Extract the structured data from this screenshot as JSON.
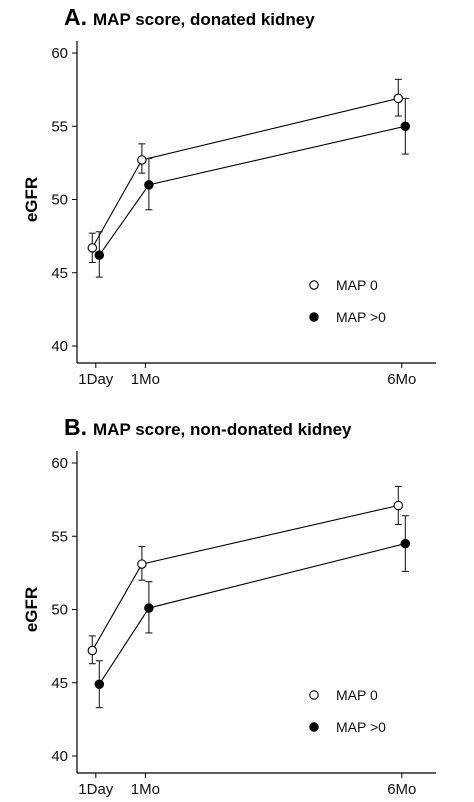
{
  "chart_data": [
    {
      "type": "line",
      "panel_letter": "A.",
      "title": "MAP score, donated kidney",
      "ylabel": "eGFR",
      "xlabel": "",
      "ylim": [
        40,
        60
      ],
      "yticks": [
        40,
        45,
        50,
        55,
        60
      ],
      "categories": [
        "1Day",
        "1Mo",
        "6Mo"
      ],
      "x": [
        1,
        30,
        180
      ],
      "xlim": [
        -10,
        200
      ],
      "grid": false,
      "legend_position": "bottom-right",
      "series": [
        {
          "name": "MAP 0",
          "marker": "open-circle",
          "values": [
            46.7,
            52.7,
            56.9
          ],
          "err_low": [
            45.7,
            51.8,
            55.7
          ],
          "err_high": [
            47.7,
            53.8,
            58.2
          ]
        },
        {
          "name": "MAP >0",
          "marker": "filled-circle",
          "values": [
            46.2,
            51.0,
            55.0
          ],
          "err_low": [
            44.7,
            49.3,
            53.1
          ],
          "err_high": [
            47.8,
            52.8,
            56.9
          ]
        }
      ]
    },
    {
      "type": "line",
      "panel_letter": "B.",
      "title": "MAP score, non-donated kidney",
      "ylabel": "eGFR",
      "xlabel": "",
      "ylim": [
        40,
        60
      ],
      "yticks": [
        40,
        45,
        50,
        55,
        60
      ],
      "categories": [
        "1Day",
        "1Mo",
        "6Mo"
      ],
      "x": [
        1,
        30,
        180
      ],
      "xlim": [
        -10,
        200
      ],
      "grid": false,
      "legend_position": "bottom-right",
      "series": [
        {
          "name": "MAP 0",
          "marker": "open-circle",
          "values": [
            47.2,
            53.1,
            57.1
          ],
          "err_low": [
            46.3,
            52.0,
            55.8
          ],
          "err_high": [
            48.2,
            54.3,
            58.4
          ]
        },
        {
          "name": "MAP >0",
          "marker": "filled-circle",
          "values": [
            44.9,
            50.1,
            54.5
          ],
          "err_low": [
            43.3,
            48.4,
            52.6
          ],
          "err_high": [
            46.5,
            51.9,
            56.4
          ]
        }
      ]
    }
  ]
}
